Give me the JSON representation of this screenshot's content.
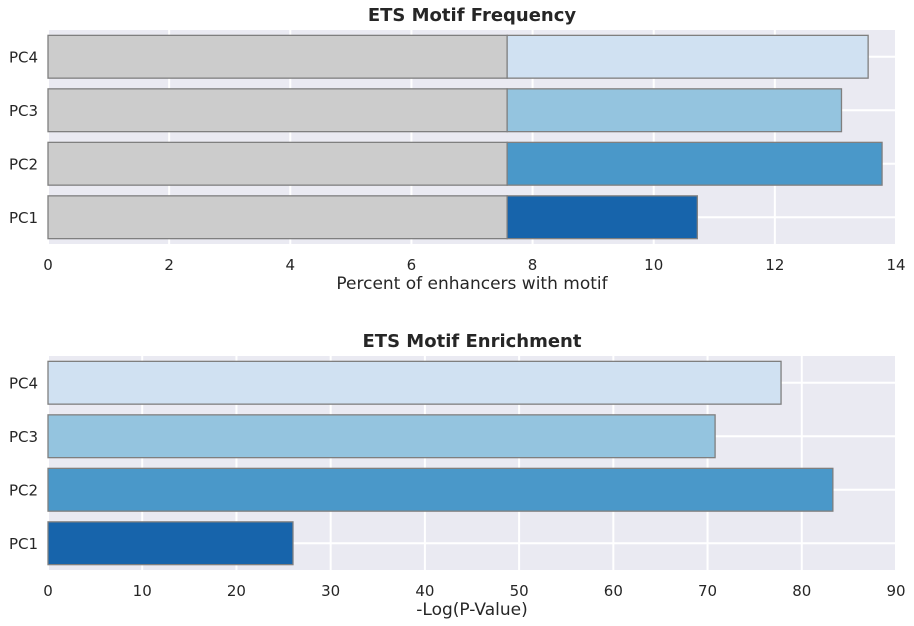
{
  "chart_data": [
    {
      "type": "bar",
      "orientation": "horizontal",
      "stacked": true,
      "title": "ETS Motif Frequency",
      "xlabel": "Percent of enhancers with motif",
      "ylabel": "",
      "categories": [
        "PC1",
        "PC2",
        "PC3",
        "PC4"
      ],
      "series": [
        {
          "values": [
            7.58,
            7.58,
            7.58,
            7.58
          ],
          "colors": [
            "#cccccc",
            "#cccccc",
            "#cccccc",
            "#cccccc"
          ]
        },
        {
          "values": [
            3.14,
            6.19,
            5.52,
            5.96
          ],
          "colors": [
            "#1764ab",
            "#4a98c9",
            "#94c4df",
            "#d0e1f2"
          ]
        }
      ],
      "xlim": [
        0,
        14
      ],
      "xticks": [
        "0",
        "2",
        "4",
        "6",
        "8",
        "10",
        "12",
        "14"
      ],
      "grid": true
    },
    {
      "type": "bar",
      "orientation": "horizontal",
      "title": "ETS Motif Enrichment",
      "xlabel": "-Log(P-Value)",
      "ylabel": "",
      "categories": [
        "PC1",
        "PC2",
        "PC3",
        "PC4"
      ],
      "values": [
        26,
        83.3,
        70.8,
        77.8
      ],
      "colors": [
        "#1764ab",
        "#4a98c9",
        "#94c4df",
        "#d0e1f2"
      ],
      "xlim": [
        0,
        90
      ],
      "xticks": [
        "0",
        "10",
        "20",
        "30",
        "40",
        "50",
        "60",
        "70",
        "80",
        "90"
      ],
      "grid": true
    }
  ],
  "style": {
    "plot_background": "#eaeaf2",
    "grid_color": "#ffffff",
    "bar_edge": "#7f7f7f"
  }
}
